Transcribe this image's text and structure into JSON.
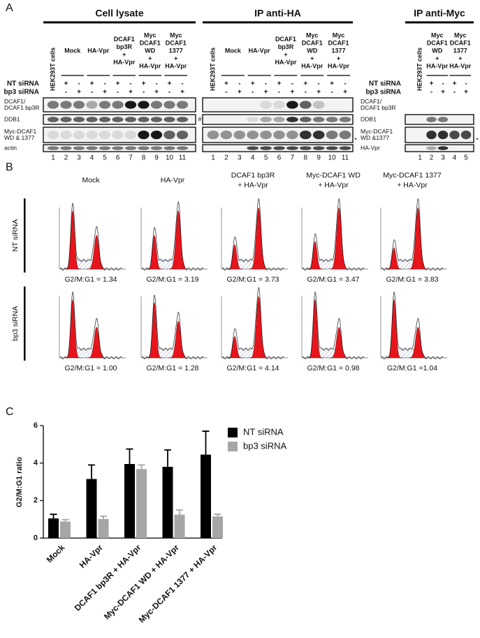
{
  "panel_a": {
    "label": "A",
    "groups": [
      {
        "title": "Cell lysate",
        "headers": [
          [
            "HEK293T cells"
          ],
          [
            "Mock"
          ],
          [
            "HA-Vpr"
          ],
          [
            "DCAF1",
            "bp3R",
            "+",
            "HA-Vpr"
          ],
          [
            "Myc",
            "DCAF1",
            "WD",
            "+",
            "HA-Vpr"
          ],
          [
            "Myc",
            "DCAF1",
            "1377",
            "+",
            "HA-Vpr"
          ]
        ],
        "row_labels": [
          "NT siRNA",
          "bp3 siRNA"
        ],
        "nt": [
          "+",
          "-",
          "+",
          "-",
          "+",
          "-",
          "+",
          "-",
          "+",
          "-"
        ],
        "bp3": [
          "-",
          "+",
          "-",
          "+",
          "-",
          "+",
          "-",
          "+",
          "-",
          "+"
        ],
        "lanes": [
          1,
          2,
          3,
          4,
          5,
          6,
          7,
          8,
          9,
          10,
          11
        ],
        "blot_labels": [
          [
            "DCAF1/",
            "DCAF1 bp3R"
          ],
          [
            "DDB1"
          ],
          [
            "Myc-DCAF1",
            "WD & 1377"
          ],
          [
            "actin"
          ]
        ]
      },
      {
        "title": "IP anti-HA",
        "headers": [
          [
            "HEK293T cells"
          ],
          [
            "Mock"
          ],
          [
            "HA-Vpr"
          ],
          [
            "DCAF1",
            "bp3R",
            "+",
            "HA-Vpr"
          ],
          [
            "Myc",
            "DCAF1",
            "WD",
            "+",
            "HA-Vpr"
          ],
          [
            "Myc",
            "DCAF1",
            "1377",
            "+",
            "HA-Vpr"
          ]
        ],
        "nt": [
          "+",
          "-",
          "+",
          "-",
          "+",
          "-",
          "+",
          "-",
          "+",
          "-"
        ],
        "bp3": [
          "-",
          "+",
          "-",
          "+",
          "-",
          "+",
          "-",
          "+",
          "-",
          "+"
        ],
        "lanes": [
          1,
          2,
          3,
          4,
          5,
          6,
          7,
          8,
          9,
          10,
          11
        ],
        "blot_labels": [
          [
            "DCAF1/",
            "DCAF1 bp3R"
          ],
          [
            "DDB1"
          ],
          [
            "Myc-DCAF1",
            "WD &1377"
          ],
          [
            "HA-Vpr"
          ]
        ]
      },
      {
        "title": "IP anti-Myc",
        "headers": [
          [
            "HEK293T cells"
          ],
          [
            "Myc",
            "DCAF1",
            "WD",
            "+",
            "HA-Vpr"
          ],
          [
            "Myc",
            "DCAF1",
            "1377",
            "+",
            "HA-Vpr"
          ]
        ],
        "row_labels": [
          "NT siRNA",
          "bp3 siRNA"
        ],
        "nt": [
          "+",
          "-",
          "+",
          "-"
        ],
        "bp3": [
          "-",
          "+",
          "-",
          "+"
        ],
        "lanes": [
          1,
          2,
          3,
          4,
          5
        ]
      }
    ],
    "marks": [
      "#",
      "*",
      "*"
    ]
  },
  "panel_b": {
    "label": "B",
    "columns": [
      [
        "Mock"
      ],
      [
        "HA-Vpr"
      ],
      [
        "DCAF1 bp3R",
        "+ HA-Vpr"
      ],
      [
        "Myc-DCAF1 WD",
        "+ HA-Vpr"
      ],
      [
        "Myc-DCAF1 1377",
        "+ HA-Vpr"
      ]
    ],
    "row_labels": [
      "NT siRNA",
      "bp3 siRNA"
    ],
    "ratios": [
      [
        "G2/M:G1 = 1.34",
        "G2/M:G1 = 3.19",
        "G2/M:G1 = 3.73",
        "G2/M:G1 = 3.47",
        "G2/M:G1 = 3.83"
      ],
      [
        "G2/M:G1 = 1.00",
        "G2/M:G1 = 1.28",
        "G2/M:G1 = 4.14",
        "G2/M:G1 = 0.98",
        "G2/M:G1 =1.04"
      ]
    ]
  },
  "panel_c": {
    "label": "C"
  },
  "chart_data": {
    "type": "bar",
    "categories": [
      "Mock",
      "HA-Vpr",
      "DCAF1 bp3R + HA-Vpr",
      "Myc-DCAF1 WD + HA-Vpr",
      "Myc-DCAF1 1377 + HA-Vpr"
    ],
    "series": [
      {
        "name": "NT siRNA",
        "color": "#000000",
        "values": [
          1.05,
          3.15,
          3.95,
          3.8,
          4.45
        ],
        "errors": [
          0.22,
          0.75,
          0.8,
          0.9,
          1.25
        ]
      },
      {
        "name": "bp3 siRNA",
        "color": "#a6a6a6",
        "values": [
          0.88,
          1.02,
          3.68,
          1.25,
          1.15
        ],
        "errors": [
          0.1,
          0.15,
          0.22,
          0.25,
          0.12
        ]
      }
    ],
    "ylabel": "G2/M:G1 ratio",
    "ylim": [
      0,
      6
    ],
    "yticks": [
      0,
      2,
      4,
      6
    ],
    "legend": "right",
    "grid": false
  }
}
